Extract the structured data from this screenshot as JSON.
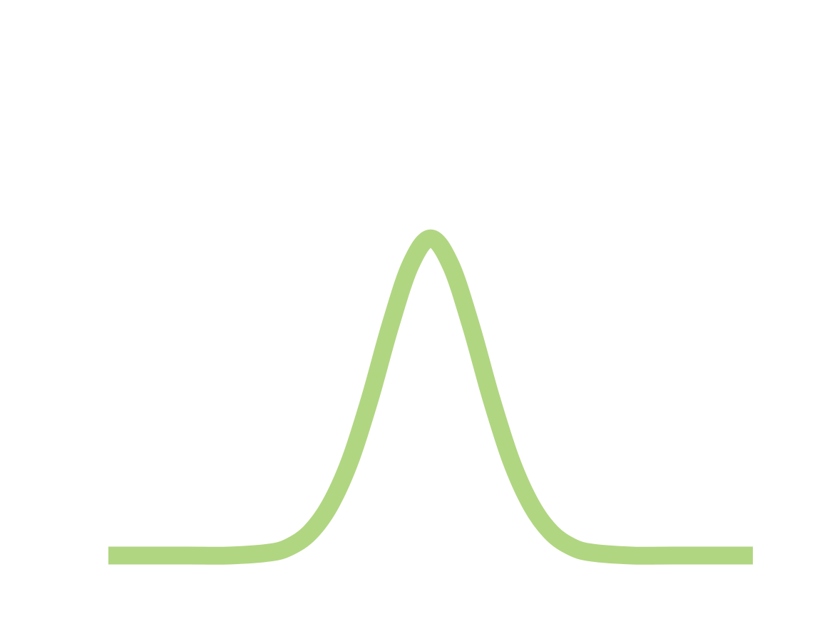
{
  "chart_data": {
    "type": "line",
    "title": "",
    "xlabel": "",
    "ylabel": "",
    "grid": false,
    "axes_visible": false,
    "xlim": [
      -4,
      4
    ],
    "ylim": [
      0,
      1
    ],
    "series": [
      {
        "color": "#b1d682",
        "x": [
          -4.0,
          -3.5,
          -3.0,
          -2.5,
          -2.0,
          -1.75,
          -1.5,
          -1.25,
          -1.0,
          -0.75,
          -0.5,
          -0.25,
          0.0,
          0.25,
          0.5,
          0.75,
          1.0,
          1.25,
          1.5,
          1.75,
          2.0,
          2.5,
          3.0,
          3.5,
          4.0
        ],
        "y": [
          0.0,
          0.0,
          0.0,
          0.0,
          0.006,
          0.018,
          0.047,
          0.104,
          0.196,
          0.326,
          0.475,
          0.6,
          0.655,
          0.6,
          0.475,
          0.326,
          0.196,
          0.104,
          0.047,
          0.018,
          0.006,
          0.0,
          0.0,
          0.0,
          0.0
        ]
      }
    ]
  }
}
